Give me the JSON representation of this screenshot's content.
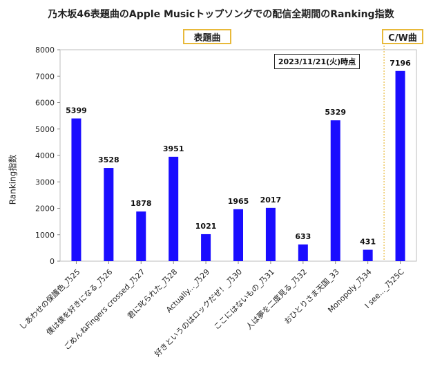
{
  "chart_data": {
    "type": "bar",
    "title": "乃木坂46表題曲のApple Musicトップソングでの配信全期間のRanking指数",
    "ylabel": "Ranking指数",
    "xlabel": "",
    "ylim": [
      0,
      8000
    ],
    "yticks": [
      0,
      1000,
      2000,
      3000,
      4000,
      5000,
      6000,
      7000,
      8000
    ],
    "grid": false,
    "categories": [
      "しあわせの保護色_乃25",
      "僕は僕を好きになる_乃26",
      "ごめんねFingers crossed_乃27",
      "君に叱られた_乃28",
      "Actually..._乃29",
      "好きというのはロックだぜ！_乃30",
      "ここにはないもの_乃31",
      "人は夢を二度見る_乃32",
      "おひとりさま天国_33",
      "Monopoly_乃34",
      "I see..._乃25C"
    ],
    "values": [
      5399,
      3528,
      1878,
      3951,
      1021,
      1965,
      2017,
      633,
      5329,
      431,
      7196
    ],
    "bar_color": "#1a0dff",
    "annotations": {
      "group_main": "表題曲",
      "group_cw": "C/W曲",
      "date_note": "2023/11/21(火)時点"
    },
    "divider_color": "#e8b93a"
  }
}
